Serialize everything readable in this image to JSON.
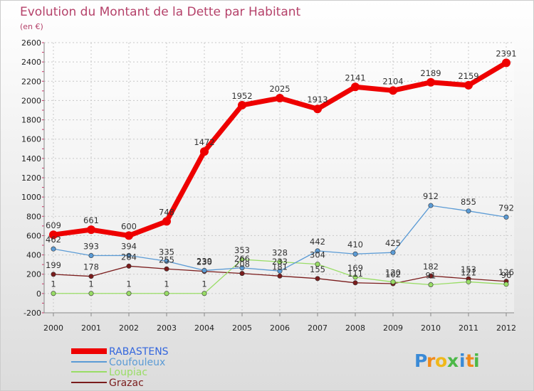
{
  "chart_data": {
    "type": "line",
    "title": "Evolution du Montant de la Dette par Habitant",
    "subtitle": "(en €)",
    "x": [
      "2000",
      "2001",
      "2002",
      "2003",
      "2004",
      "2005",
      "2006",
      "2007",
      "2008",
      "2009",
      "2010",
      "2011",
      "2012"
    ],
    "ylim": [
      -200,
      2600
    ],
    "yticks": [
      -200,
      0,
      200,
      400,
      600,
      800,
      1000,
      1200,
      1400,
      1600,
      1800,
      2000,
      2200,
      2400,
      2600
    ],
    "grid": true,
    "legend": "bottom-left",
    "series": [
      {
        "name": "RABASTENS",
        "color": "#ee0000",
        "values": [
          609,
          661,
          600,
          748,
          1472,
          1952,
          2025,
          1913,
          2141,
          2104,
          2189,
          2159,
          2391
        ]
      },
      {
        "name": "Coufouleux",
        "color": "#5b9bd5",
        "values": [
          462,
          393,
          394,
          335,
          239,
          266,
          233,
          442,
          410,
          425,
          912,
          855,
          792
        ]
      },
      {
        "name": "Loupiac",
        "color": "#99dd66",
        "values": [
          1,
          1,
          1,
          1,
          1,
          353,
          328,
          304,
          169,
          120,
          91,
          121,
          96
        ]
      },
      {
        "name": "Grazac",
        "color": "#7a1c1c",
        "values": [
          199,
          178,
          284,
          255,
          230,
          208,
          181,
          155,
          111,
          102,
          182,
          153,
          126
        ]
      }
    ]
  },
  "logo": {
    "letters": [
      "P",
      "r",
      "o",
      "x",
      "i",
      "t",
      "i"
    ],
    "colors": [
      "#3a8ad6",
      "#f08a1a",
      "#f0b81a",
      "#4cb848",
      "#3a8ad6",
      "#f08a1a",
      "#4cb848"
    ]
  }
}
